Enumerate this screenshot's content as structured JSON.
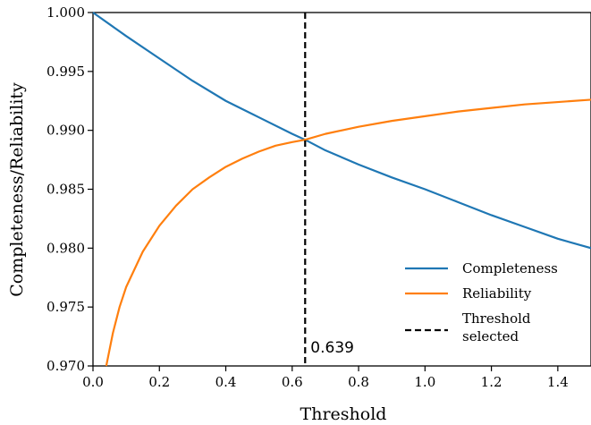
{
  "chart_data": {
    "type": "line",
    "title": "",
    "xlabel": "Threshold",
    "ylabel": "Completeness/Reliability",
    "xlim": [
      0.0,
      1.5
    ],
    "ylim": [
      0.97,
      1.0
    ],
    "xticks": [
      "0.0",
      "0.2",
      "0.4",
      "0.6",
      "0.8",
      "1.0",
      "1.2",
      "1.4"
    ],
    "yticks": [
      "0.970",
      "0.975",
      "0.980",
      "0.985",
      "0.990",
      "0.995",
      "1.000"
    ],
    "grid": false,
    "legend_position": "bottom-right",
    "series": [
      {
        "name": "Completeness",
        "color": "#1f77b4",
        "x": [
          0.0,
          0.1,
          0.2,
          0.3,
          0.4,
          0.5,
          0.6,
          0.639,
          0.7,
          0.8,
          0.9,
          1.0,
          1.1,
          1.2,
          1.3,
          1.4,
          1.5
        ],
        "y": [
          1.0,
          0.998,
          0.9961,
          0.9942,
          0.9925,
          0.9911,
          0.9897,
          0.9892,
          0.9883,
          0.9871,
          0.986,
          0.985,
          0.9839,
          0.9828,
          0.9818,
          0.9808,
          0.98
        ]
      },
      {
        "name": "Reliability",
        "color": "#ff7f0e",
        "x": [
          0.04,
          0.06,
          0.08,
          0.1,
          0.15,
          0.2,
          0.25,
          0.3,
          0.35,
          0.4,
          0.45,
          0.5,
          0.55,
          0.6,
          0.639,
          0.7,
          0.8,
          0.9,
          1.0,
          1.1,
          1.2,
          1.3,
          1.4,
          1.5
        ],
        "y": [
          0.97,
          0.9728,
          0.975,
          0.9767,
          0.9797,
          0.9819,
          0.9836,
          0.985,
          0.986,
          0.9869,
          0.9876,
          0.9882,
          0.9887,
          0.989,
          0.9892,
          0.9897,
          0.9903,
          0.9908,
          0.9912,
          0.9916,
          0.9919,
          0.9922,
          0.9924,
          0.9926
        ]
      }
    ],
    "threshold": {
      "name": "Threshold selected",
      "legend_line1": "Threshold",
      "legend_line2": "selected",
      "value": 0.639,
      "label": "0.639",
      "color": "#000000"
    }
  }
}
